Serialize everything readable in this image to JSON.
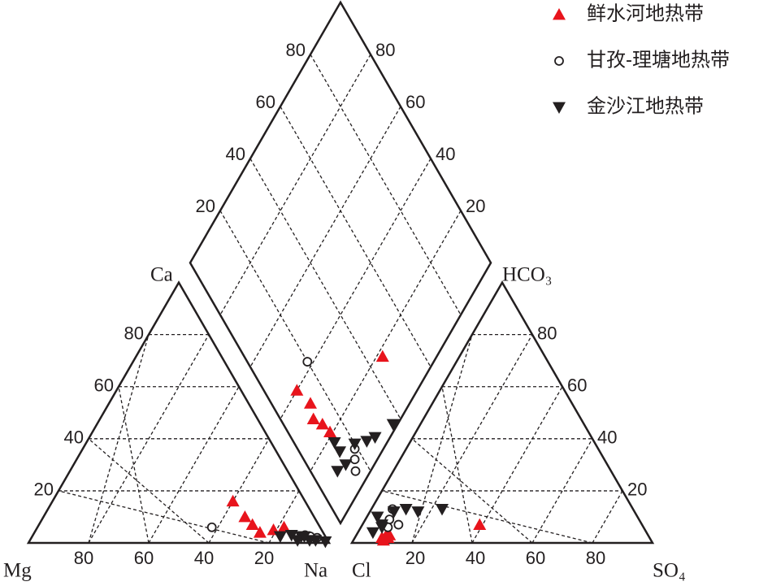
{
  "chart_data": {
    "type": "piper",
    "grid": true,
    "corner_labels": {
      "ca": "Ca",
      "mg": "Mg",
      "na": "Na",
      "cl": "Cl",
      "so4": "SO₄",
      "hco3": "HCO₃"
    },
    "ca_ticks": [
      20,
      40,
      60,
      80
    ],
    "mg_ticks": [
      80,
      60,
      40,
      20
    ],
    "so4_ticks": [
      20,
      40,
      60,
      80
    ],
    "hco3_ticks": [
      20,
      40,
      60,
      80
    ],
    "diamond_left_ticks": [
      20,
      40,
      60,
      80
    ],
    "diamond_right_ticks": [
      20,
      40,
      60,
      80
    ],
    "series": [
      {
        "name": "鲜水河地热带",
        "color": "#e8141c",
        "marker": "triangle",
        "ca": [
          16,
          10,
          7,
          4,
          5,
          6
        ],
        "mg": [
          24,
          23,
          22,
          21,
          16,
          12
        ],
        "hco3": [
          2,
          3,
          1,
          2,
          3,
          7
        ],
        "so4": [
          9,
          10,
          10,
          11,
          11,
          39
        ]
      },
      {
        "name": "甘孜-理塘地热带",
        "color": "#231f20",
        "marker": "circle",
        "ca": [
          6,
          3,
          2.5,
          2
        ],
        "mg": [
          36,
          6.5,
          5,
          3
        ],
        "hco3": [
          13,
          7,
          9,
          6
        ],
        "so4": [
          7,
          12,
          8,
          9
        ]
      },
      {
        "name": "金沙江地热带",
        "color": "#231f20",
        "marker": "triangle-down",
        "ca": [
          2.5,
          3,
          2.5,
          1,
          1,
          0.5,
          1,
          2.5
        ],
        "mg": [
          15,
          11,
          8,
          6,
          4,
          1,
          10,
          7
        ],
        "hco3": [
          10,
          7,
          12,
          13,
          12,
          13,
          4,
          6
        ],
        "so4": [
          3.5,
          6.5,
          8,
          11.5,
          16,
          23.5,
          5,
          7
        ]
      }
    ]
  }
}
